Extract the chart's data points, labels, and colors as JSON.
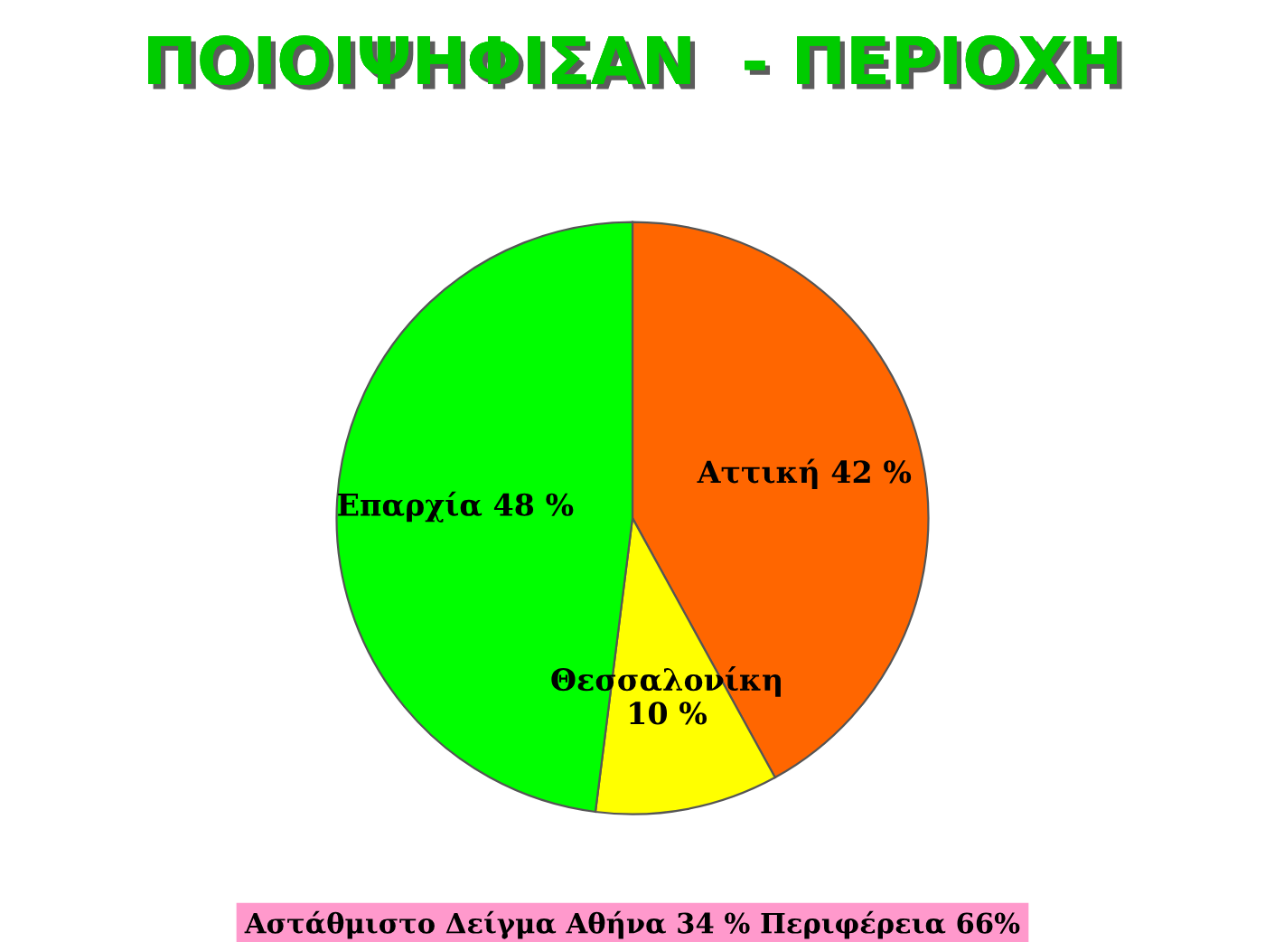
{
  "chart_data": {
    "type": "pie",
    "title": "ΠΟΙΟΙΨΗΦΙΣΑΝ  - ΠΕΡΙΟΧΗ",
    "categories": [
      "Αττική",
      "Θεσσαλονίκη",
      "Επαρχία"
    ],
    "values": [
      42,
      10,
      48
    ],
    "value_labels": [
      "42 %",
      "10 %",
      "48 %"
    ],
    "colors": [
      "#ff6600",
      "#ffff00",
      "#00ff00"
    ],
    "legend": false,
    "annotations": [
      "Αστάθμιστο Δείγμα Αθήνα 34 % Περιφέρεια 66%"
    ]
  }
}
